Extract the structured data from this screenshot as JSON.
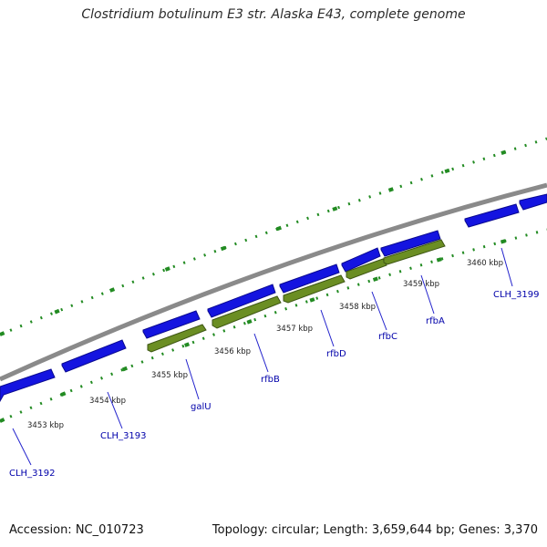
{
  "title": "Clostridium botulinum E3 str. Alaska E43, complete genome",
  "footer": {
    "accession": "Accession: NC_010723",
    "summary": "Topology: circular; Length: 3,659,644 bp; Genes: 3,370"
  },
  "colors": {
    "backbone": "#8a8a8a",
    "forward_gene": "#1212e6",
    "reverse_gene": "#6b8e23",
    "ticks": "#228b22",
    "label_text": "#0000aa",
    "kbp_text": "#222222",
    "leader": "#2222cc"
  },
  "kbp_labels": [
    "3453 kbp",
    "3454 kbp",
    "3455 kbp",
    "3456 kbp",
    "3457 kbp",
    "3458 kbp",
    "3459 kbp",
    "3460 kbp"
  ],
  "genes": [
    {
      "name": "CLH_3192",
      "strand": "forward"
    },
    {
      "name": "CLH_3193",
      "strand": "forward"
    },
    {
      "name": "galU",
      "strand": "reverse"
    },
    {
      "name": "rfbB",
      "strand": "reverse"
    },
    {
      "name": "rfbD",
      "strand": "reverse"
    },
    {
      "name": "rfbC",
      "strand": "reverse"
    },
    {
      "name": "rfbA",
      "strand": "reverse"
    },
    {
      "name": "CLH_3199",
      "strand": "forward"
    }
  ]
}
